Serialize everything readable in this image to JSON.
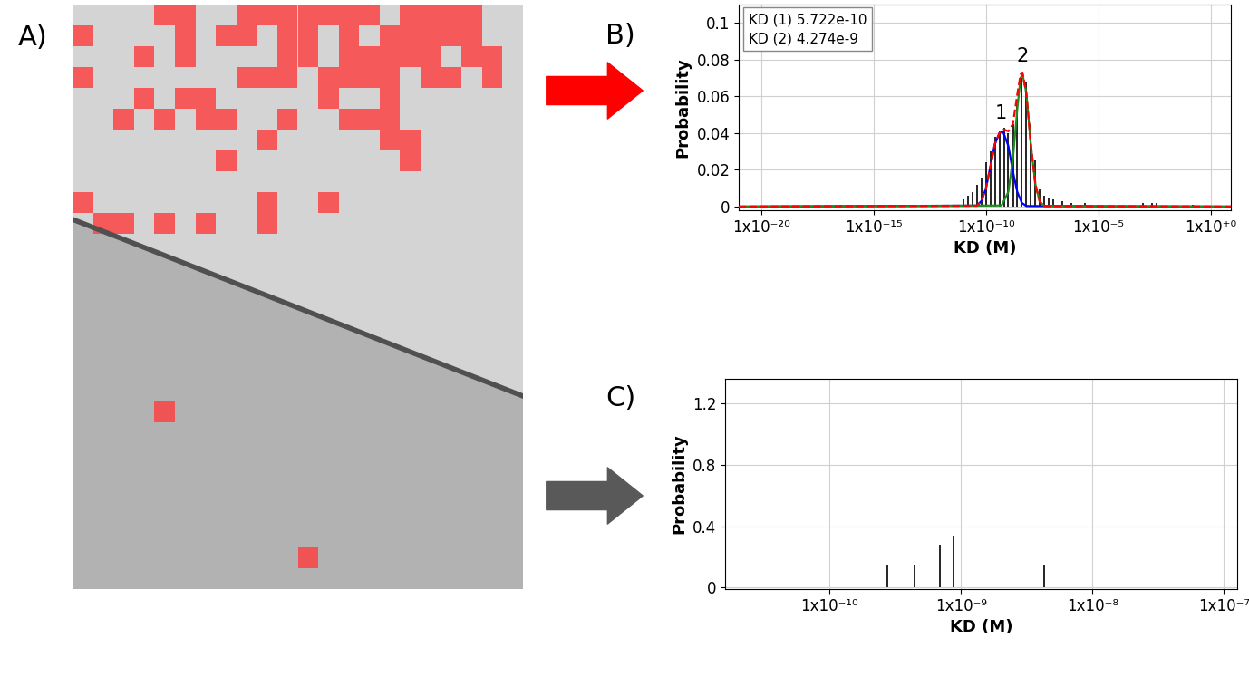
{
  "panel_labels": [
    "A)",
    "B)",
    "C)"
  ],
  "image": {
    "cell_grid": {
      "rows": 28,
      "columns": 22
    },
    "highlighted_cells": [
      [
        0,
        4
      ],
      [
        0,
        5
      ],
      [
        0,
        8
      ],
      [
        0,
        9
      ],
      [
        0,
        10
      ],
      [
        0,
        11
      ],
      [
        0,
        12
      ],
      [
        0,
        13
      ],
      [
        0,
        14
      ],
      [
        0,
        16
      ],
      [
        0,
        17
      ],
      [
        0,
        18
      ],
      [
        0,
        19
      ],
      [
        1,
        0
      ],
      [
        1,
        5
      ],
      [
        1,
        7
      ],
      [
        1,
        8
      ],
      [
        1,
        10
      ],
      [
        1,
        11
      ],
      [
        1,
        13
      ],
      [
        1,
        15
      ],
      [
        1,
        16
      ],
      [
        1,
        17
      ],
      [
        1,
        18
      ],
      [
        1,
        19
      ],
      [
        2,
        3
      ],
      [
        2,
        5
      ],
      [
        2,
        10
      ],
      [
        2,
        11
      ],
      [
        2,
        13
      ],
      [
        2,
        14
      ],
      [
        2,
        15
      ],
      [
        2,
        16
      ],
      [
        2,
        17
      ],
      [
        2,
        19
      ],
      [
        2,
        20
      ],
      [
        3,
        0
      ],
      [
        3,
        8
      ],
      [
        3,
        9
      ],
      [
        3,
        10
      ],
      [
        3,
        12
      ],
      [
        3,
        13
      ],
      [
        3,
        14
      ],
      [
        3,
        15
      ],
      [
        3,
        17
      ],
      [
        3,
        18
      ],
      [
        3,
        20
      ],
      [
        4,
        3
      ],
      [
        4,
        5
      ],
      [
        4,
        6
      ],
      [
        4,
        12
      ],
      [
        4,
        15
      ],
      [
        5,
        2
      ],
      [
        5,
        4
      ],
      [
        5,
        6
      ],
      [
        5,
        7
      ],
      [
        5,
        10
      ],
      [
        5,
        13
      ],
      [
        5,
        14
      ],
      [
        5,
        15
      ],
      [
        6,
        9
      ],
      [
        6,
        15
      ],
      [
        6,
        16
      ],
      [
        7,
        7
      ],
      [
        7,
        16
      ],
      [
        9,
        0
      ],
      [
        9,
        9
      ],
      [
        9,
        12
      ],
      [
        10,
        1
      ],
      [
        10,
        2
      ],
      [
        10,
        4
      ],
      [
        10,
        6
      ],
      [
        10,
        9
      ],
      [
        19,
        4
      ],
      [
        26,
        11
      ]
    ]
  },
  "chart_data": [
    {
      "type": "bar",
      "x_label": "KD (M)",
      "y_label": "Probability",
      "log": "x",
      "grid": true,
      "xlim": [
        1e-21,
        8
      ],
      "xticks": [
        {
          "value": 1e-20,
          "label": "1x10⁻²⁰"
        },
        {
          "value": 1e-15,
          "label": "1x10⁻¹⁵"
        },
        {
          "value": 1e-10,
          "label": "1x10⁻¹⁰"
        },
        {
          "value": 1e-05,
          "label": "1x10⁻⁵"
        },
        {
          "value": 1,
          "label": "1x10⁺⁰"
        }
      ],
      "ylim": [
        -0.002,
        0.11
      ],
      "yticks": [
        0,
        0.02,
        0.04,
        0.06,
        0.08,
        0.1
      ],
      "annotations": [
        {
          "text": "KD (1) 5.722e-10"
        },
        {
          "text": "KD (2) 4.274e-9"
        },
        {
          "text": "1",
          "x": 4.6e-10,
          "y": 0.046
        },
        {
          "text": "2",
          "x": 4.274e-09,
          "y": 0.077
        }
      ],
      "series": [
        {
          "type": "bar",
          "color": "#000000",
          "x": [
            1e-11,
            1.6e-11,
            2.5e-11,
            4e-11,
            6.3e-11,
            1e-10,
            1.6e-10,
            2.5e-10,
            4e-10,
            6.3e-10,
            1e-09,
            1.6e-09,
            2.5e-09,
            4e-09,
            6.3e-09,
            1e-08,
            1.6e-08,
            2.5e-08,
            4e-08,
            6.3e-08,
            1e-07,
            2.5e-07,
            6.3e-07,
            2.5e-06,
            0.001,
            0.0025,
            0.004,
            0.16
          ],
          "values": [
            0.004,
            0.006,
            0.008,
            0.012,
            0.016,
            0.024,
            0.03,
            0.038,
            0.041,
            0.043,
            0.04,
            0.045,
            0.058,
            0.07,
            0.068,
            0.045,
            0.025,
            0.01,
            0.006,
            0.005,
            0.004,
            0.003,
            0.002,
            0.002,
            0.002,
            0.002,
            0.002,
            0.001
          ]
        },
        {
          "type": "line",
          "color": "#0000ff",
          "line_style": "solid",
          "x": [
            1e-21,
            4e-11,
            6.3e-11,
            1e-10,
            1.6e-10,
            2.5e-10,
            4e-10,
            5.722e-10,
            1e-09,
            1.6e-09,
            2.5e-09,
            4e-09,
            6.3e-09,
            8
          ],
          "values": [
            0,
            0.0005,
            0.003,
            0.0098,
            0.022,
            0.034,
            0.04,
            0.041,
            0.033,
            0.019,
            0.008,
            0.002,
            0.0003,
            0
          ]
        },
        {
          "type": "line",
          "color": "#1e8c1e",
          "line_style": "solid",
          "x": [
            1e-21,
            5e-10,
            1e-09,
            1.6e-09,
            2.5e-09,
            3.5e-09,
            4.274e-09,
            6.3e-09,
            1e-08,
            1.6e-08,
            2.5e-08,
            4e-08,
            8
          ],
          "values": [
            0,
            0.0006,
            0.008,
            0.026,
            0.053,
            0.07,
            0.072,
            0.062,
            0.034,
            0.012,
            0.0027,
            0.0003,
            0
          ]
        },
        {
          "type": "line",
          "color": "#ff0000",
          "line_style": "dashed",
          "x": [
            1e-21,
            4e-11,
            6.3e-11,
            1e-10,
            1.6e-10,
            2.5e-10,
            4e-10,
            6.3e-10,
            1e-09,
            1.6e-09,
            2.5e-09,
            3.5e-09,
            4.274e-09,
            6.3e-09,
            1e-08,
            1.6e-08,
            2.5e-08,
            4e-08,
            8
          ],
          "values": [
            0,
            0.0005,
            0.003,
            0.0098,
            0.022,
            0.034,
            0.04,
            0.042,
            0.041,
            0.045,
            0.061,
            0.072,
            0.073,
            0.062,
            0.034,
            0.012,
            0.0027,
            0.0003,
            0
          ]
        }
      ]
    },
    {
      "type": "bar",
      "x_label": "KD (M)",
      "y_label": "Probability",
      "log": "x",
      "grid": true,
      "xlim": [
        1.6e-11,
        1.26e-07
      ],
      "xticks": [
        {
          "value": 1e-10,
          "label": "1x10⁻¹⁰"
        },
        {
          "value": 1e-09,
          "label": "1x10⁻⁹"
        },
        {
          "value": 1e-08,
          "label": "1x10⁻⁸"
        },
        {
          "value": 1e-07,
          "label": "1x10⁻⁷"
        }
      ],
      "ylim": [
        -0.01,
        1.36
      ],
      "yticks": [
        0,
        0.4,
        0.8,
        1.2
      ],
      "series": [
        {
          "type": "bar",
          "color": "#000000",
          "x": [
            2.75e-10,
            4.4e-10,
            6.9e-10,
            8.7e-10,
            4.3e-09
          ],
          "values": [
            0.15,
            0.15,
            0.28,
            0.34,
            0.15
          ]
        }
      ]
    }
  ]
}
